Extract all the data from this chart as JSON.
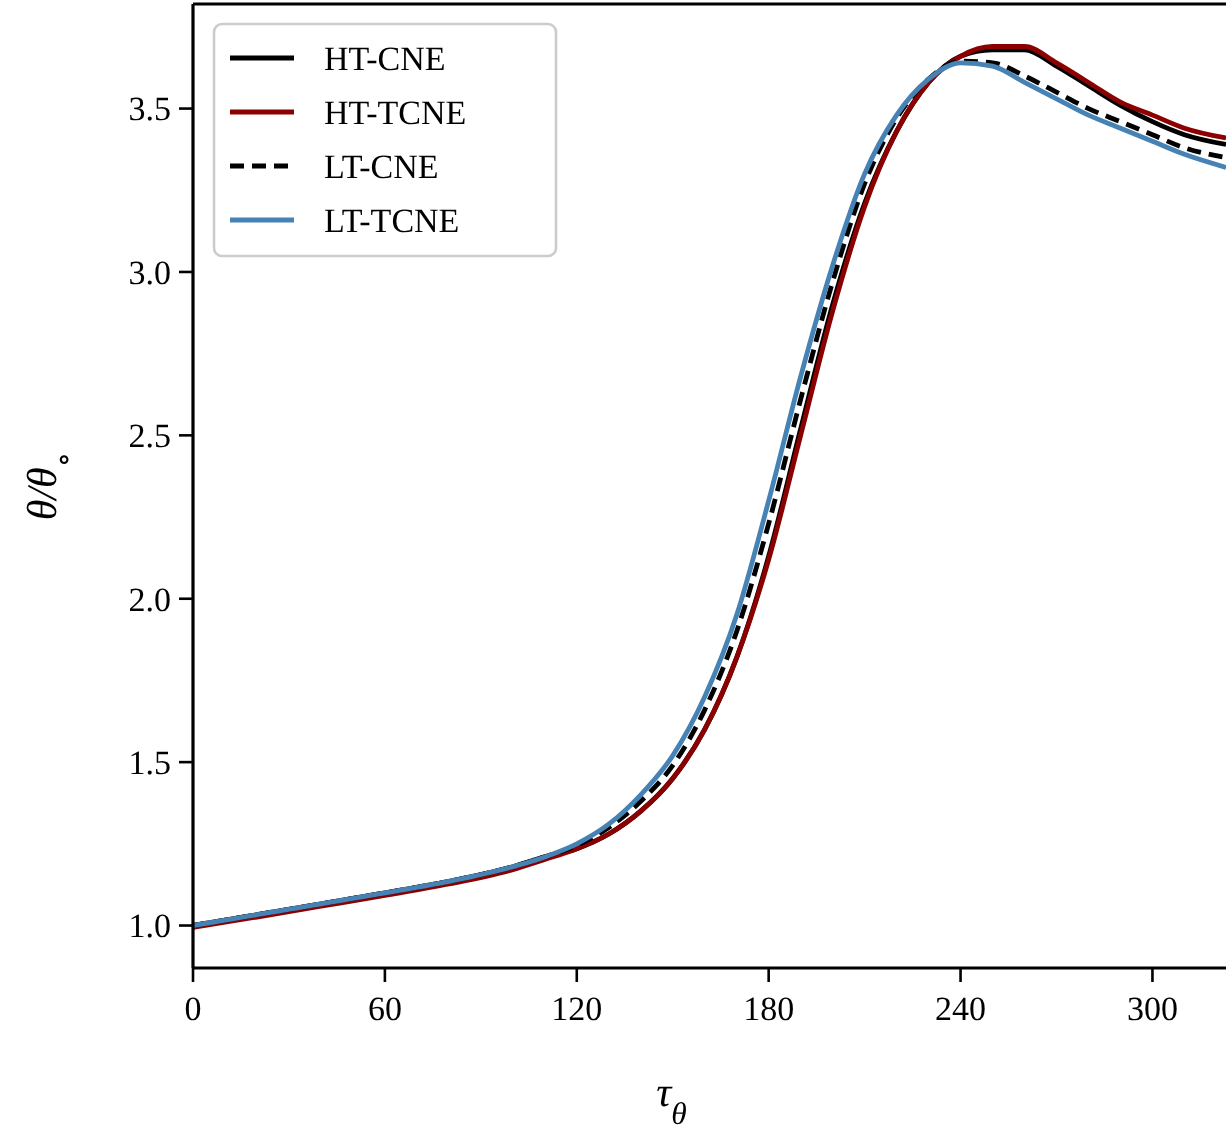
{
  "chart_data": {
    "type": "line",
    "xlabel": "τ$_{θ}$",
    "ylabel": "θ/θ$_{∘}$",
    "x": [
      0,
      20,
      40,
      60,
      80,
      100,
      110,
      120,
      130,
      140,
      150,
      160,
      170,
      180,
      190,
      200,
      210,
      220,
      230,
      240,
      250,
      260,
      270,
      280,
      290,
      300,
      310,
      323
    ],
    "series": [
      {
        "name": "HT-CNE",
        "color": "#000000",
        "line_style": "solid",
        "values": [
          1.0,
          1.033,
          1.066,
          1.1,
          1.135,
          1.18,
          1.21,
          1.235,
          1.28,
          1.35,
          1.45,
          1.6,
          1.82,
          2.13,
          2.52,
          2.9,
          3.21,
          3.43,
          3.58,
          3.66,
          3.68,
          3.68,
          3.63,
          3.57,
          3.51,
          3.46,
          3.42,
          3.39
        ]
      },
      {
        "name": "HT-TCNE",
        "color": "#8b0000",
        "line_style": "solid",
        "values": [
          0.994,
          1.026,
          1.059,
          1.092,
          1.127,
          1.171,
          1.202,
          1.235,
          1.28,
          1.35,
          1.45,
          1.6,
          1.82,
          2.12,
          2.5,
          2.88,
          3.2,
          3.43,
          3.58,
          3.66,
          3.69,
          3.69,
          3.64,
          3.58,
          3.52,
          3.48,
          3.44,
          3.41
        ]
      },
      {
        "name": "LT-CNE",
        "color": "#000000",
        "line_style": "dashed",
        "values": [
          1.0,
          1.033,
          1.066,
          1.1,
          1.135,
          1.18,
          1.21,
          1.245,
          1.3,
          1.38,
          1.49,
          1.66,
          1.9,
          2.23,
          2.61,
          2.97,
          3.27,
          3.47,
          3.59,
          3.645,
          3.64,
          3.6,
          3.55,
          3.5,
          3.46,
          3.42,
          3.38,
          3.35
        ]
      },
      {
        "name": "LT-TCNE",
        "color": "#4682b4",
        "line_style": "solid",
        "values": [
          1.0,
          1.033,
          1.066,
          1.1,
          1.135,
          1.18,
          1.21,
          1.25,
          1.31,
          1.4,
          1.52,
          1.7,
          1.95,
          2.3,
          2.68,
          3.02,
          3.3,
          3.48,
          3.59,
          3.64,
          3.63,
          3.58,
          3.53,
          3.48,
          3.44,
          3.4,
          3.36,
          3.32
        ]
      }
    ],
    "xlim": [
      0,
      323
    ],
    "ylim": [
      0.87,
      3.82
    ],
    "xticks": [
      0,
      60,
      120,
      180,
      240,
      300
    ],
    "yticks": [
      {
        "value": 1,
        "label": "1.0"
      },
      {
        "value": 1.5,
        "label": "1.5"
      },
      {
        "value": 2,
        "label": "2.0"
      },
      {
        "value": 2.5,
        "label": "2.5"
      },
      {
        "value": 3,
        "label": "3.0"
      },
      {
        "value": 3.5,
        "label": "3.5"
      }
    ],
    "grid": false,
    "legend": "top left",
    "marker": "none"
  }
}
